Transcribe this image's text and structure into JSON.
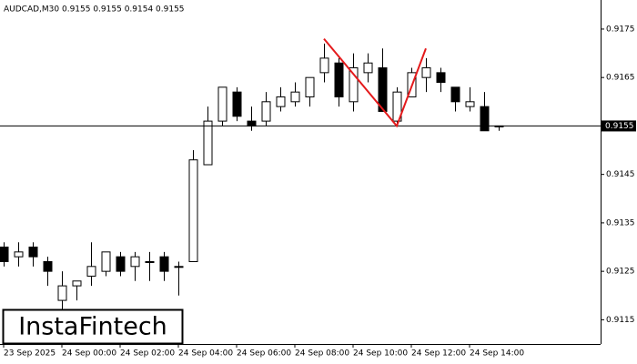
{
  "header": "AUDCAD,M30  0.9155 0.9155 0.9154 0.9155",
  "logo": "InstaFintech",
  "chart_data": {
    "type": "candlestick",
    "categories": [
      "23 Sep 2025",
      null,
      null,
      null,
      "24 Sep 00:00",
      null,
      null,
      null,
      "24 Sep 02:00",
      null,
      null,
      null,
      "24 Sep 04:00",
      null,
      null,
      null,
      "24 Sep 06:00",
      null,
      null,
      null,
      "24 Sep 08:00",
      null,
      null,
      null,
      "24 Sep 10:00",
      null,
      null,
      null,
      "24 Sep 12:00",
      null,
      null,
      null,
      "24 Sep 14:00",
      null,
      null
    ],
    "open": [
      0.913,
      0.9128,
      0.913,
      0.9127,
      0.9119,
      0.9122,
      0.9124,
      0.9125,
      0.9128,
      0.9126,
      0.9127,
      0.9128,
      0.9126,
      0.9127,
      0.9147,
      0.9156,
      0.9162,
      0.9156,
      0.9156,
      0.9159,
      0.916,
      0.9161,
      0.9166,
      0.9168,
      0.916,
      0.9166,
      0.9167,
      0.9156,
      0.9161,
      0.9165,
      0.9166,
      0.9163,
      0.9159,
      0.9159,
      0.9155
    ],
    "high": [
      0.9131,
      0.9131,
      0.9131,
      0.9128,
      0.9125,
      0.9123,
      0.9131,
      0.9129,
      0.9129,
      0.9129,
      0.9129,
      0.9129,
      0.9127,
      0.915,
      0.9159,
      0.9163,
      0.9163,
      0.9159,
      0.9162,
      0.9163,
      0.9164,
      0.9165,
      0.9172,
      0.9169,
      0.917,
      0.917,
      0.9171,
      0.9163,
      0.9167,
      0.9169,
      0.9167,
      0.9163,
      0.9163,
      0.9162,
      0.9155
    ],
    "low": [
      0.9126,
      0.9126,
      0.9126,
      0.9122,
      0.9117,
      0.9119,
      0.9122,
      0.9124,
      0.9124,
      0.9123,
      0.9123,
      0.9123,
      0.912,
      0.9127,
      0.9147,
      0.9155,
      0.9156,
      0.9154,
      0.9155,
      0.9158,
      0.9159,
      0.9159,
      0.9164,
      0.9159,
      0.9158,
      0.9164,
      0.9158,
      0.9155,
      0.9161,
      0.9162,
      0.9162,
      0.9158,
      0.9158,
      0.9154,
      0.9154
    ],
    "close": [
      0.9127,
      0.9129,
      0.9128,
      0.9125,
      0.9122,
      0.9123,
      0.9126,
      0.9129,
      0.9125,
      0.9128,
      0.9127,
      0.9125,
      0.9126,
      0.9148,
      0.9156,
      0.9163,
      0.9157,
      0.9155,
      0.916,
      0.9161,
      0.9162,
      0.9165,
      0.9169,
      0.9161,
      0.9167,
      0.9168,
      0.9158,
      0.9162,
      0.9166,
      0.9167,
      0.9164,
      0.916,
      0.916,
      0.9154,
      0.9155
    ],
    "ylim": [
      0.911,
      0.9181
    ],
    "yticks": [
      0.9115,
      0.9125,
      0.9135,
      0.9145,
      0.9165,
      0.9175
    ],
    "current_price": 0.9155,
    "pattern_line": {
      "color": "#e41a1c",
      "candle_index": [
        22,
        27,
        29
      ],
      "values": [
        0.9173,
        0.9155,
        0.9171
      ]
    }
  }
}
